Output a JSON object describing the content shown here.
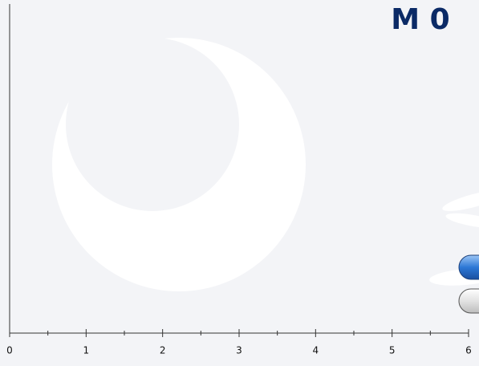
{
  "header": {
    "label": "M 0"
  },
  "axis": {
    "xlim": [
      0,
      6
    ],
    "xticks": [
      0,
      1,
      2,
      3,
      4,
      5,
      6
    ],
    "minor_xticks": [
      0.5,
      1.5,
      2.5,
      3.5,
      4.5,
      5.5
    ]
  }
}
